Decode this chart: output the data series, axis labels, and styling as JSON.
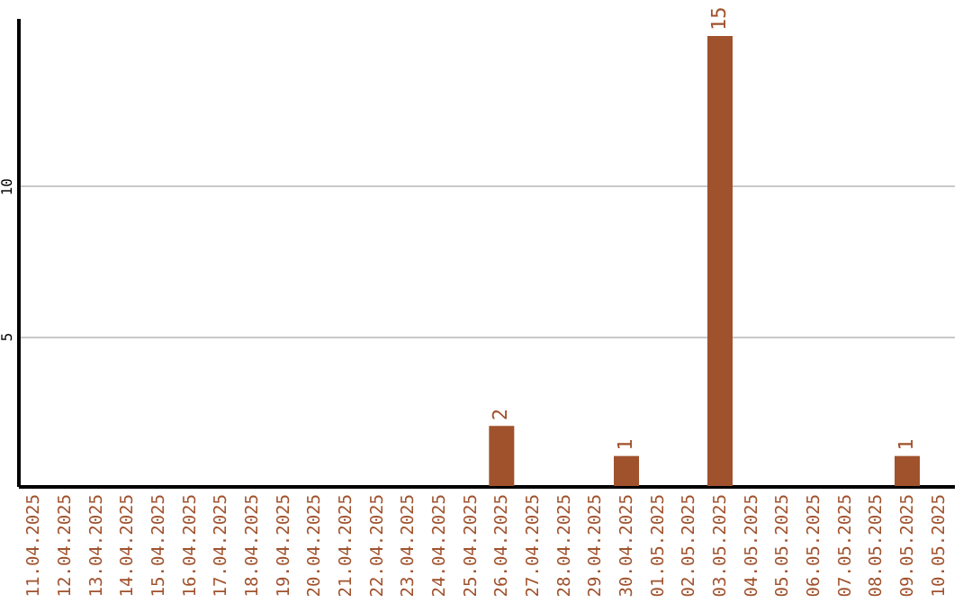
{
  "chart_data": {
    "type": "bar",
    "categories": [
      "11.04.2025",
      "12.04.2025",
      "13.04.2025",
      "14.04.2025",
      "15.04.2025",
      "16.04.2025",
      "17.04.2025",
      "18.04.2025",
      "19.04.2025",
      "20.04.2025",
      "21.04.2025",
      "22.04.2025",
      "23.04.2025",
      "24.04.2025",
      "25.04.2025",
      "26.04.2025",
      "27.04.2025",
      "28.04.2025",
      "29.04.2025",
      "30.04.2025",
      "01.05.2025",
      "02.05.2025",
      "03.05.2025",
      "04.05.2025",
      "05.05.2025",
      "06.05.2025",
      "07.05.2025",
      "08.05.2025",
      "09.05.2025",
      "10.05.2025"
    ],
    "values": [
      0,
      0,
      0,
      0,
      0,
      0,
      0,
      0,
      0,
      0,
      0,
      0,
      0,
      0,
      0,
      2,
      0,
      0,
      0,
      1,
      0,
      0,
      15,
      0,
      0,
      0,
      0,
      0,
      1,
      0
    ],
    "value_labels": [
      null,
      null,
      null,
      null,
      null,
      null,
      null,
      null,
      null,
      null,
      null,
      null,
      null,
      null,
      null,
      "2",
      null,
      null,
      null,
      "1",
      null,
      null,
      "15",
      null,
      null,
      null,
      null,
      null,
      "1",
      null
    ],
    "color": "#a0522d",
    "ylim": [
      0,
      15.6
    ],
    "yticks": [
      5,
      10
    ],
    "grid": "y"
  }
}
